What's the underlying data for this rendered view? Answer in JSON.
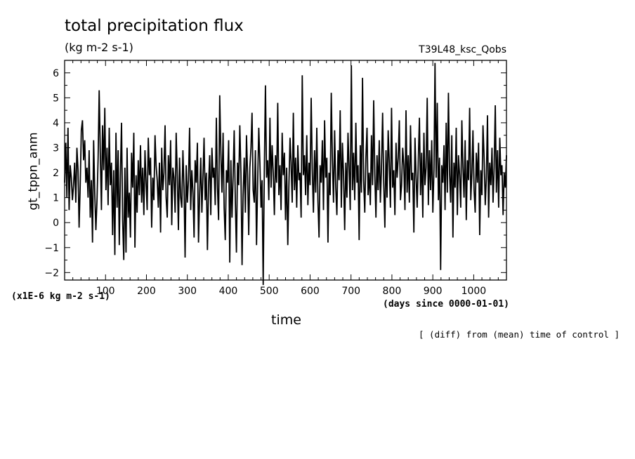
{
  "chart_data": {
    "type": "line",
    "title": "total precipitation flux",
    "subtitle": "(kg m-2 s-1)",
    "run_label": "T39L48_ksc_Qobs",
    "ylabel": "gt_tppn_anm",
    "xlabel": "time",
    "x_units": "(days since 0000-01-01)",
    "y_scale_note": "(x1E-6 kg m-2 s-1)",
    "footnote": "[ (diff) from (mean) time of control ]",
    "xlim": [
      0,
      1080
    ],
    "ylim": [
      -2.3,
      6.5
    ],
    "x_ticks": [
      100,
      200,
      300,
      400,
      500,
      600,
      700,
      800,
      900,
      1000
    ],
    "y_ticks": [
      -2,
      -1,
      0,
      1,
      2,
      3,
      4,
      5,
      6
    ],
    "grid": false,
    "series": [
      {
        "values": [
          1.6,
          3.2,
          1.0,
          3.8,
          0.5,
          2.3,
          1.8,
          0.9,
          1.5,
          2.4,
          0.8,
          3.0,
          2.1,
          -0.2,
          1.5,
          3.7,
          4.1,
          2.5,
          3.3,
          1.6,
          2.2,
          1.0,
          2.9,
          0.2,
          1.7,
          -0.8,
          3.3,
          1.2,
          -0.3,
          0.9,
          2.6,
          5.3,
          2.8,
          0.5,
          3.9,
          2.1,
          4.6,
          1.3,
          3.0,
          0.7,
          3.8,
          1.5,
          2.4,
          -0.5,
          2.1,
          -1.3,
          3.6,
          0.6,
          2.9,
          -0.9,
          1.9,
          4.0,
          0.1,
          -1.5,
          2.2,
          -1.2,
          3.0,
          0.2,
          1.2,
          -0.6,
          2.8,
          1.4,
          3.6,
          -1.0,
          1.9,
          0.4,
          2.5,
          1.1,
          3.1,
          0.8,
          2.2,
          0.3,
          2.9,
          1.6,
          0.5,
          3.4,
          1.9,
          2.6,
          -0.2,
          1.8,
          0.9,
          3.5,
          2.3,
          1.7,
          0.6,
          2.4,
          -0.4,
          3.0,
          1.3,
          2.0,
          3.9,
          1.0,
          0.2,
          2.7,
          1.5,
          3.3,
          -0.1,
          2.2,
          1.8,
          0.4,
          3.6,
          1.9,
          -0.3,
          2.6,
          1.0,
          0.6,
          2.9,
          1.4,
          -1.4,
          2.3,
          0.8,
          1.7,
          3.8,
          0.5,
          2.1,
          1.2,
          -0.6,
          2.5,
          1.6,
          3.2,
          -0.8,
          1.1,
          2.6,
          0.4,
          1.9,
          3.4,
          0.9,
          2.0,
          -1.1,
          1.5,
          2.7,
          0.3,
          3.0,
          1.8,
          2.2,
          0.7,
          4.2,
          1.4,
          0.1,
          5.1,
          2.8,
          1.2,
          3.6,
          0.6,
          -0.7,
          2.1,
          1.6,
          3.3,
          -1.6,
          2.5,
          0.2,
          1.8,
          3.7,
          0.9,
          -1.2,
          2.4,
          1.5,
          3.9,
          2.0,
          -1.7,
          1.1,
          2.6,
          0.4,
          3.5,
          1.9,
          -0.5,
          2.2,
          3.0,
          4.4,
          1.3,
          0.8,
          2.9,
          -0.9,
          1.6,
          3.8,
          2.4,
          0.6,
          1.7,
          -2.5,
          2.1,
          5.5,
          1.8,
          2.5,
          0.9,
          4.2,
          1.4,
          3.1,
          2.0,
          0.3,
          2.7,
          1.6,
          4.8,
          1.1,
          2.3,
          0.5,
          3.6,
          1.9,
          2.8,
          0.1,
          2.2,
          -0.9,
          1.5,
          3.4,
          2.4,
          0.8,
          4.4,
          1.3,
          2.6,
          0.6,
          3.1,
          1.7,
          2.0,
          0.2,
          5.9,
          1.9,
          2.7,
          1.1,
          3.5,
          0.7,
          2.4,
          1.5,
          5.0,
          2.1,
          0.4,
          2.9,
          1.2,
          3.8,
          0.9,
          -0.6,
          2.3,
          1.6,
          3.3,
          0.5,
          4.1,
          1.8,
          2.6,
          -0.8,
          2.0,
          1.1,
          5.2,
          2.5,
          0.8,
          3.7,
          1.4,
          0.3,
          2.9,
          1.7,
          4.5,
          0.6,
          3.2,
          1.9,
          -0.3,
          2.4,
          1.0,
          3.6,
          2.2,
          0.5,
          6.3,
          1.3,
          2.8,
          0.9,
          4.0,
          1.6,
          2.3,
          -0.7,
          3.1,
          1.2,
          5.8,
          1.7,
          0.4,
          2.6,
          3.8,
          1.1,
          2.0,
          0.7,
          3.5,
          1.5,
          4.9,
          1.9,
          0.2,
          2.7,
          1.3,
          3.3,
          0.8,
          2.2,
          4.4,
          1.6,
          -0.2,
          2.9,
          1.0,
          3.7,
          2.4,
          0.6,
          4.6,
          1.4,
          2.1,
          0.3,
          3.2,
          1.8,
          2.6,
          4.1,
          0.9,
          1.5,
          3.0,
          2.3,
          0.5,
          4.5,
          1.2,
          2.7,
          0.8,
          3.9,
          1.7,
          2.0,
          -0.4,
          3.4,
          1.9,
          0.6,
          2.5,
          4.2,
          1.1,
          2.8,
          0.2,
          3.6,
          1.5,
          2.2,
          5.0,
          0.7,
          2.9,
          1.3,
          3.3,
          0.4,
          2.1,
          6.4,
          1.8,
          4.8,
          0.9,
          2.6,
          -1.9,
          2.3,
          1.6,
          3.1,
          0.5,
          4.0,
          1.2,
          5.2,
          2.0,
          0.8,
          3.5,
          -0.6,
          2.4,
          1.4,
          3.8,
          0.3,
          2.7,
          1.9,
          0.6,
          4.1,
          2.2,
          1.0,
          3.3,
          0.1,
          2.5,
          1.7,
          4.6,
          0.9,
          2.0,
          3.7,
          1.3,
          0.4,
          2.8,
          1.6,
          3.2,
          -0.5,
          2.1,
          1.1,
          3.9,
          2.6,
          0.7,
          1.8,
          4.3,
          0.2,
          2.4,
          1.5,
          3.0,
          0.8,
          2.2,
          4.7,
          1.2,
          2.9,
          0.6,
          3.4,
          1.9,
          2.3,
          0.3,
          2.0,
          1.4,
          2.7
        ]
      }
    ]
  }
}
